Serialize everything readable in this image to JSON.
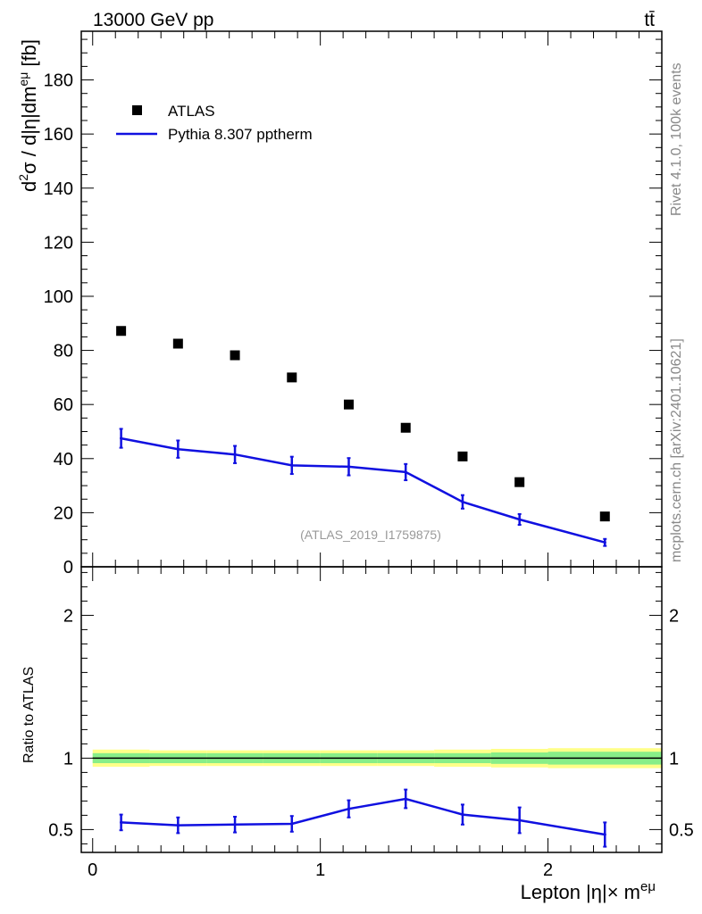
{
  "header": {
    "energy_label": "13000 GeV pp",
    "process_label": "tt̄"
  },
  "side_labels": {
    "rivet": "Rivet 4.1.0,  100k events",
    "mcplots": "mcplots.cern.ch [arXiv:2401.10621]"
  },
  "colors": {
    "data": "#000000",
    "mc": "#1010e0",
    "band_inner": "#88ee88",
    "band_outer": "#ffff88"
  },
  "chart_data": [
    {
      "type": "scatter",
      "panel": "main",
      "title": "",
      "ylabel_parts": {
        "main": "d",
        "sup1": "2",
        "mid": "σ / d|η|dm",
        "sup2": "eμ",
        "tail": " [fb]"
      },
      "watermark": "(ATLAS_2019_I1759875)",
      "xlim": [
        -0.05,
        2.5
      ],
      "ylim": [
        0,
        198
      ],
      "yticks": [
        0,
        20,
        40,
        60,
        80,
        100,
        120,
        140,
        160,
        180
      ],
      "ytick_labels": [
        "0",
        "20",
        "40",
        "60",
        "80",
        "100",
        "120",
        "140",
        "160",
        "180"
      ],
      "legend": {
        "position": "top-left",
        "entries": [
          "ATLAS",
          "Pythia 8.307 pptherm"
        ]
      },
      "series": [
        {
          "name": "ATLAS",
          "style": "markers",
          "x": [
            0.125,
            0.375,
            0.625,
            0.875,
            1.125,
            1.375,
            1.625,
            1.875,
            2.25
          ],
          "values": [
            87.2,
            82.5,
            78.2,
            70.0,
            60.0,
            51.4,
            40.8,
            31.3,
            18.6
          ]
        },
        {
          "name": "Pythia 8.307 pptherm",
          "style": "line",
          "x": [
            0.125,
            0.375,
            0.625,
            0.875,
            1.125,
            1.375,
            1.625,
            1.875,
            2.25
          ],
          "values": [
            47.5,
            43.5,
            41.5,
            37.5,
            37.0,
            35.0,
            24.0,
            17.5,
            9.0
          ],
          "errors": [
            3.5,
            3.2,
            3.2,
            3.2,
            3.2,
            3.0,
            2.5,
            2.0,
            1.3
          ]
        }
      ]
    },
    {
      "type": "line",
      "panel": "ratio",
      "ylabel": "Ratio to ATLAS",
      "xlabel_parts": {
        "main": "Lepton |η|× m",
        "sup": "eμ"
      },
      "xlim": [
        -0.05,
        2.5
      ],
      "ylim": [
        0.34,
        2.34
      ],
      "xticks": [
        0,
        1,
        2
      ],
      "xtick_labels": [
        "0",
        "1",
        "2"
      ],
      "yticks": [
        0.5,
        1,
        2
      ],
      "ytick_labels": [
        "0.5",
        "1",
        "2"
      ],
      "reference_band": {
        "x_edges": [
          0,
          0.25,
          0.5,
          0.75,
          1.0,
          1.25,
          1.5,
          1.75,
          2.0,
          2.5
        ],
        "inner": [
          0.035,
          0.035,
          0.035,
          0.035,
          0.035,
          0.035,
          0.035,
          0.04,
          0.045
        ],
        "outer": [
          0.06,
          0.055,
          0.055,
          0.055,
          0.055,
          0.055,
          0.06,
          0.065,
          0.07
        ]
      },
      "series": [
        {
          "name": "Pythia 8.307 pptherm / ATLAS",
          "x": [
            0.125,
            0.375,
            0.625,
            0.875,
            1.125,
            1.375,
            1.625,
            1.875,
            2.25
          ],
          "values": [
            0.55,
            0.53,
            0.535,
            0.54,
            0.645,
            0.715,
            0.605,
            0.565,
            0.465
          ],
          "errors": [
            0.055,
            0.055,
            0.055,
            0.055,
            0.06,
            0.065,
            0.07,
            0.09,
            0.085
          ]
        }
      ]
    }
  ]
}
